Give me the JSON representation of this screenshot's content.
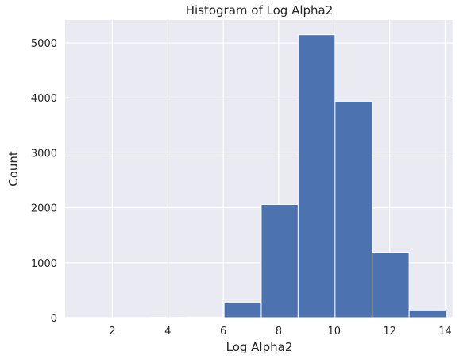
{
  "chart_data": {
    "type": "bar",
    "title": "Histogram of Log Alpha2",
    "xlabel": "Log Alpha2",
    "ylabel": "Count",
    "xlim": [
      0.3,
      14.3
    ],
    "ylim": [
      0,
      5420
    ],
    "xticks": [
      2,
      4,
      6,
      8,
      10,
      12,
      14
    ],
    "yticks": [
      0,
      1000,
      2000,
      3000,
      4000,
      5000
    ],
    "bins": [
      {
        "x0": 0.7,
        "x1": 2.05,
        "value": 0
      },
      {
        "x0": 2.05,
        "x1": 3.4,
        "value": 0
      },
      {
        "x0": 3.4,
        "x1": 4.7,
        "value": 5
      },
      {
        "x0": 4.7,
        "x1": 6.03,
        "value": 10
      },
      {
        "x0": 6.03,
        "x1": 7.37,
        "value": 270
      },
      {
        "x0": 7.37,
        "x1": 8.7,
        "value": 2060
      },
      {
        "x0": 8.7,
        "x1": 10.03,
        "value": 5150
      },
      {
        "x0": 10.03,
        "x1": 11.37,
        "value": 3940
      },
      {
        "x0": 11.37,
        "x1": 12.7,
        "value": 1190
      },
      {
        "x0": 12.7,
        "x1": 14.03,
        "value": 140
      }
    ],
    "grid": true,
    "colors": {
      "bar": "#4c72b0",
      "background": "#eaeaf2",
      "grid": "#ffffff"
    }
  }
}
